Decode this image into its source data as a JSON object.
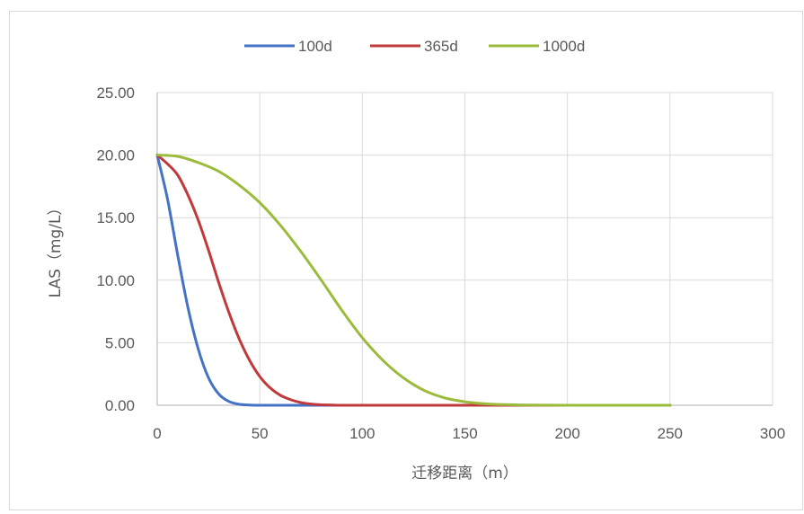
{
  "chart_data": {
    "type": "line",
    "title": "",
    "xlabel": "迁移距离（m）",
    "ylabel": "LAS（mg/L）",
    "xlim": [
      0,
      300
    ],
    "ylim": [
      0,
      25
    ],
    "x_ticks": [
      "0",
      "50",
      "100",
      "150",
      "200",
      "250",
      "300"
    ],
    "y_ticks": [
      "0.00",
      "5.00",
      "10.00",
      "15.00",
      "20.00",
      "25.00"
    ],
    "grid": true,
    "legend_position": "top",
    "series": [
      {
        "name": "100d",
        "color": "#4472c4",
        "x": [
          0,
          5,
          10,
          15,
          20,
          25,
          30,
          35,
          40,
          45,
          50,
          55,
          60,
          70,
          80,
          100,
          150,
          200,
          250
        ],
        "y": [
          20,
          16.5,
          12,
          7.8,
          4.5,
          2.2,
          0.9,
          0.3,
          0.08,
          0.02,
          0,
          0,
          0,
          0,
          0,
          0,
          0,
          0,
          0
        ]
      },
      {
        "name": "365d",
        "color": "#c0393b",
        "x": [
          0,
          5,
          10,
          15,
          20,
          25,
          30,
          35,
          40,
          45,
          50,
          55,
          60,
          65,
          70,
          75,
          80,
          85,
          90,
          100,
          150,
          200,
          250
        ],
        "y": [
          20,
          19.3,
          18.4,
          16.8,
          14.8,
          12.4,
          9.8,
          7.4,
          5.3,
          3.6,
          2.3,
          1.4,
          0.8,
          0.45,
          0.22,
          0.1,
          0.04,
          0.02,
          0,
          0,
          0,
          0,
          0
        ]
      },
      {
        "name": "1000d",
        "color": "#9bbb3c",
        "x": [
          0,
          10,
          20,
          30,
          40,
          50,
          60,
          70,
          80,
          90,
          100,
          110,
          120,
          130,
          140,
          150,
          160,
          170,
          180,
          200,
          250
        ],
        "y": [
          20,
          19.9,
          19.4,
          18.7,
          17.6,
          16.2,
          14.4,
          12.3,
          10.0,
          7.6,
          5.4,
          3.6,
          2.2,
          1.2,
          0.6,
          0.28,
          0.12,
          0.05,
          0.02,
          0,
          0
        ]
      }
    ]
  }
}
